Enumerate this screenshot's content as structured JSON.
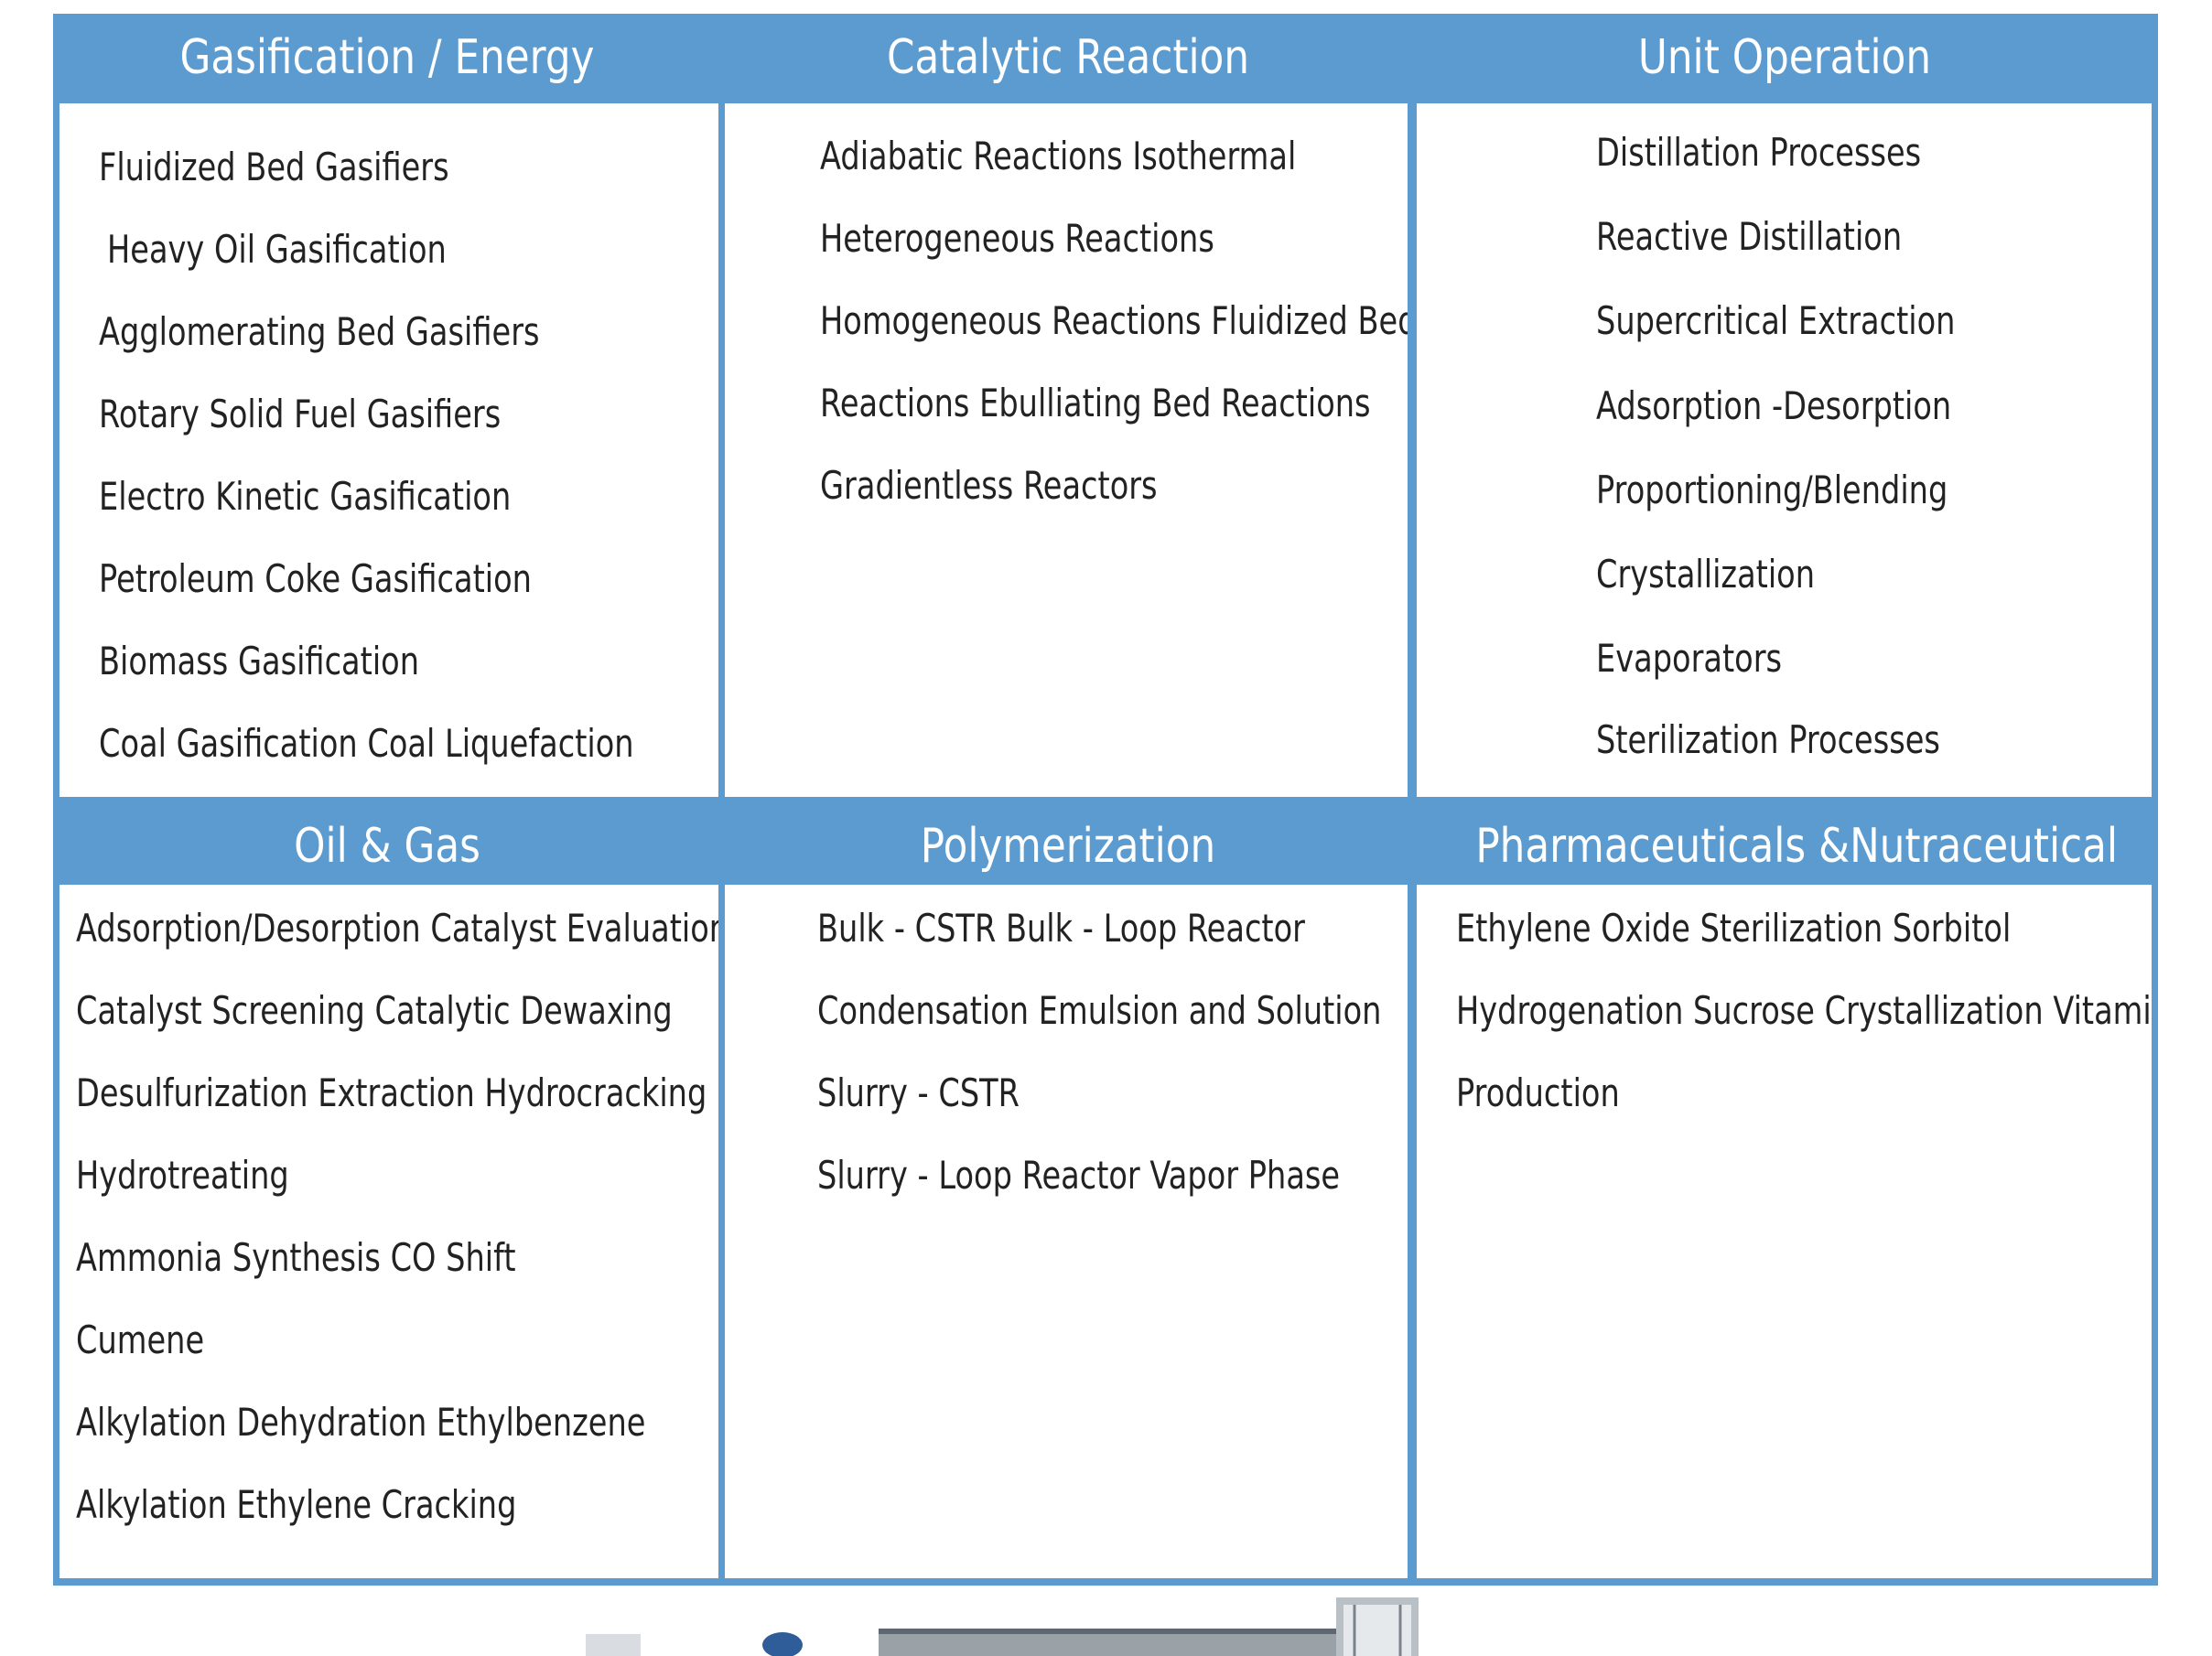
{
  "panels": [
    {
      "title": "Gasification / Energy",
      "items": [
        "Fluidized Bed Gasifiers",
        "Heavy Oil Gasification",
        "Agglomerating Bed Gasifiers",
        "Rotary Solid Fuel Gasifiers",
        "Electro Kinetic Gasification",
        "Petroleum Coke Gasification",
        "Biomass Gasification",
        "Coal Gasification Coal Liquefaction"
      ]
    },
    {
      "title": "Catalytic Reaction",
      "items": [
        "Adiabatic Reactions Isothermal",
        "Heterogeneous Reactions",
        "Homogeneous Reactions Fluidized Bed",
        "Reactions Ebulliating Bed Reactions",
        "Gradientless Reactors"
      ]
    },
    {
      "title": "Unit Operation",
      "items": [
        "Distillation Processes",
        "Reactive Distillation",
        "Supercritical Extraction",
        "Adsorption -Desorption",
        "Proportioning/Blending",
        "Crystallization",
        "Evaporators",
        "Sterilization Processes"
      ]
    },
    {
      "title": "Oil & Gas",
      "items": [
        "Adsorption/Desorption Catalyst Evaluation",
        "Catalyst Screening Catalytic Dewaxing",
        "Desulfurization Extraction Hydrocracking",
        "Hydrotreating",
        "Ammonia Synthesis CO Shift",
        "Cumene",
        "Alkylation Dehydration Ethylbenzene",
        "Alkylation Ethylene Cracking"
      ]
    },
    {
      "title": "Polymerization",
      "items": [
        "Bulk - CSTR Bulk - Loop Reactor",
        "Condensation Emulsion and Solution",
        "Slurry - CSTR",
        "Slurry - Loop Reactor Vapor Phase"
      ]
    },
    {
      "title": "Pharmaceuticals &Nutraceutical",
      "items": [
        "Ethylene Oxide Sterilization Sorbitol",
        "Hydrogenation Sucrose Crystallization Vitamin",
        "Production"
      ]
    }
  ],
  "colors": {
    "header": "#5b9bcf",
    "text": "#222222"
  }
}
